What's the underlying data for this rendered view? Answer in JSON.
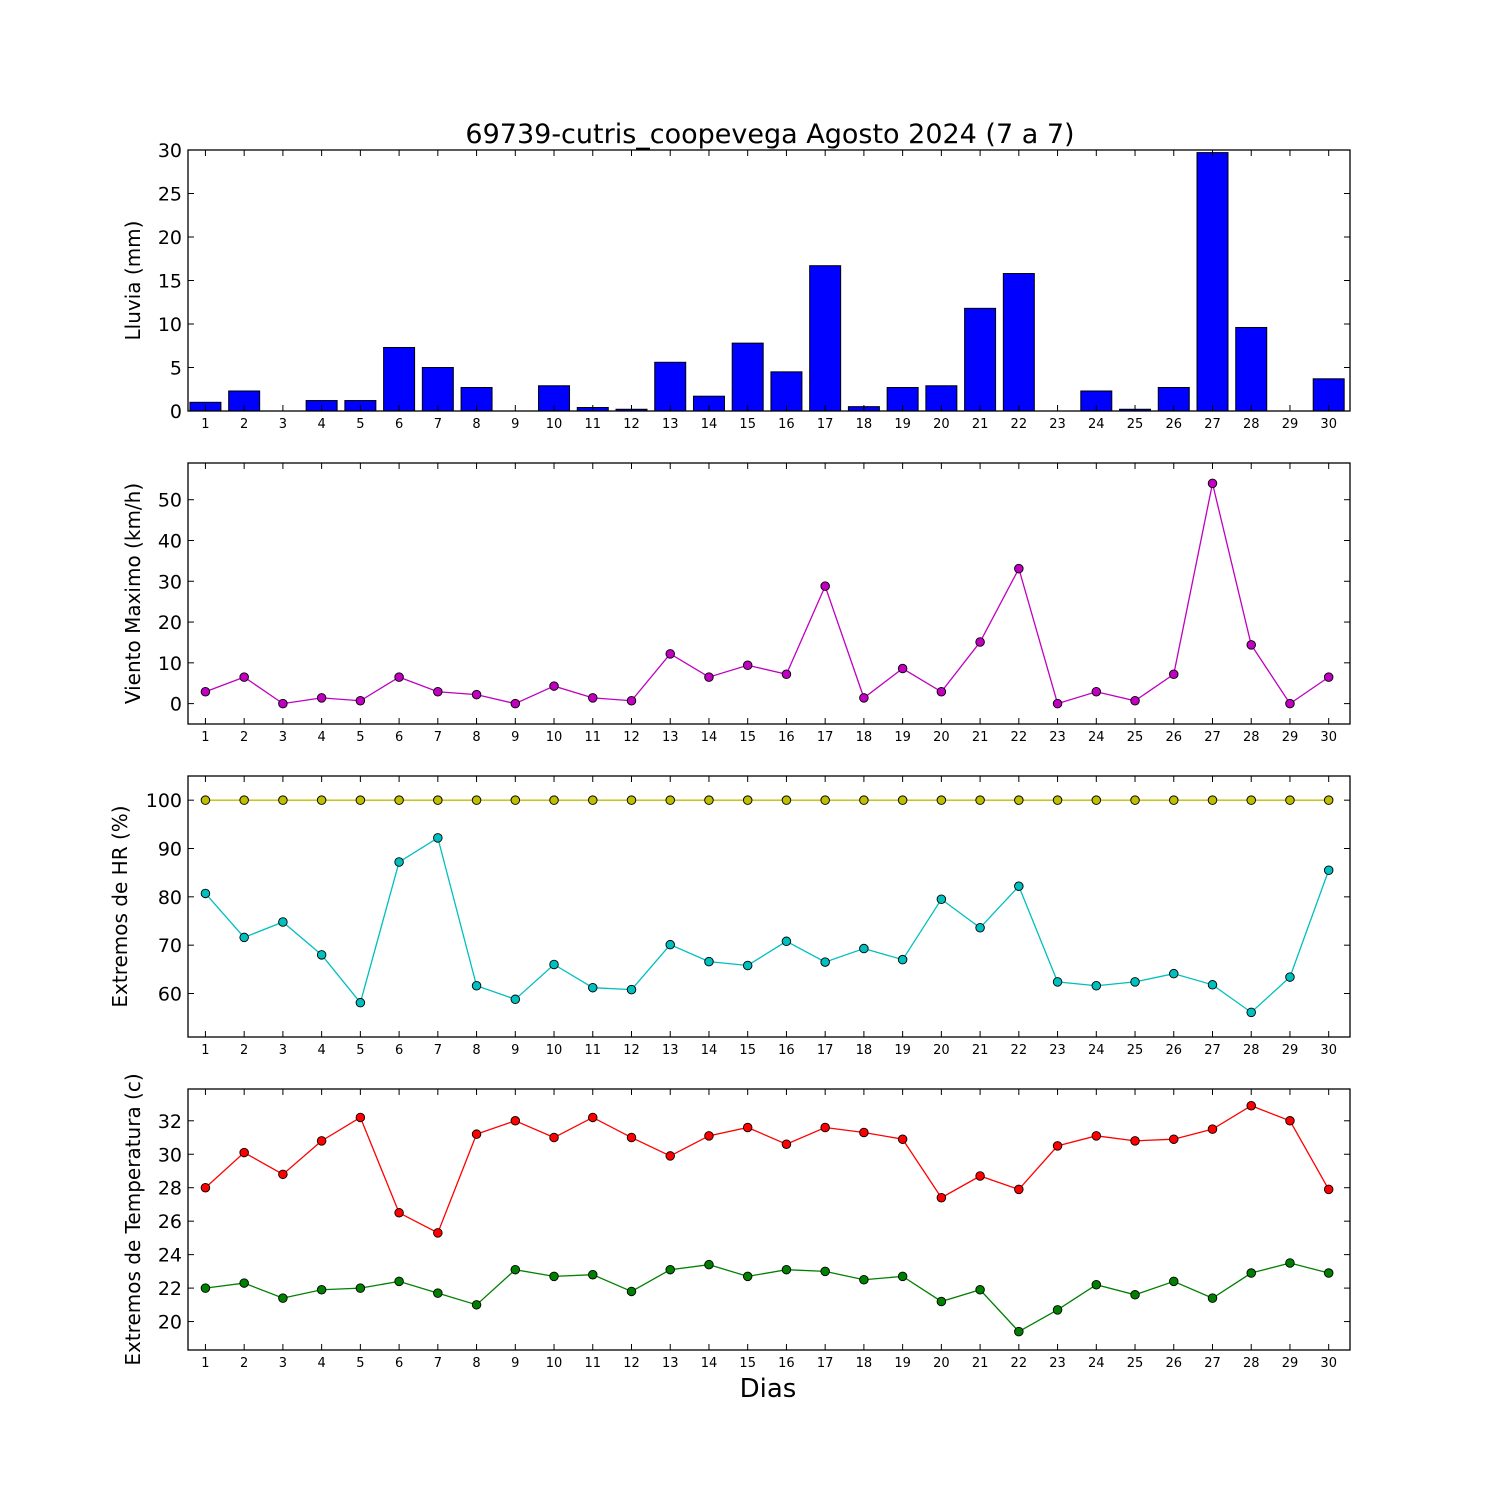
{
  "chart_data": [
    {
      "type": "bar",
      "title": "69739-cutris_coopevega Agosto 2024  (7 a 7)",
      "ylabel": "Lluvia (mm)",
      "xlabel": "",
      "categories": [
        "1",
        "2",
        "3",
        "4",
        "5",
        "6",
        "7",
        "8",
        "9",
        "10",
        "11",
        "12",
        "13",
        "14",
        "15",
        "16",
        "17",
        "18",
        "19",
        "20",
        "21",
        "22",
        "23",
        "24",
        "25",
        "26",
        "27",
        "28",
        "29",
        "30"
      ],
      "values": [
        1.0,
        2.3,
        0,
        1.2,
        1.2,
        7.3,
        5.0,
        2.7,
        0,
        2.9,
        0.4,
        0.2,
        5.6,
        1.7,
        7.8,
        4.5,
        16.7,
        0.5,
        2.7,
        2.9,
        11.8,
        15.8,
        0,
        2.3,
        0.2,
        2.7,
        29.7,
        9.6,
        0,
        3.7
      ],
      "yticks": [
        0,
        5,
        10,
        15,
        20,
        25,
        30
      ],
      "ylim": [
        0,
        30
      ],
      "color": "#0000ff"
    },
    {
      "type": "line",
      "title": "",
      "ylabel": "Viento Maximo (km/h)",
      "xlabel": "",
      "x": [
        1,
        2,
        3,
        4,
        5,
        6,
        7,
        8,
        9,
        10,
        11,
        12,
        13,
        14,
        15,
        16,
        17,
        18,
        19,
        20,
        21,
        22,
        23,
        24,
        25,
        26,
        27,
        28,
        29,
        30
      ],
      "series": [
        {
          "values": [
            2.9,
            6.5,
            0,
            1.4,
            0.7,
            6.5,
            2.9,
            2.2,
            0,
            4.3,
            1.4,
            0.7,
            12.2,
            6.5,
            9.4,
            7.2,
            28.8,
            1.4,
            8.6,
            2.9,
            15.1,
            33.1,
            0,
            2.9,
            0.7,
            7.2,
            54.0,
            14.4,
            0,
            6.5
          ],
          "color": "#bf00bf"
        }
      ],
      "yticks": [
        0,
        10,
        20,
        30,
        40,
        50
      ],
      "ylim": [
        -5,
        59
      ],
      "xlim": [
        0.55,
        30.55
      ]
    },
    {
      "type": "line",
      "title": "",
      "ylabel": "Extremos de HR (%)",
      "xlabel": "",
      "x": [
        1,
        2,
        3,
        4,
        5,
        6,
        7,
        8,
        9,
        10,
        11,
        12,
        13,
        14,
        15,
        16,
        17,
        18,
        19,
        20,
        21,
        22,
        23,
        24,
        25,
        26,
        27,
        28,
        29,
        30
      ],
      "series": [
        {
          "values": [
            100,
            100,
            100,
            100,
            100,
            100,
            100,
            100,
            100,
            100,
            100,
            100,
            100,
            100,
            100,
            100,
            100,
            100,
            100,
            100,
            100,
            100,
            100,
            100,
            100,
            100,
            100,
            100,
            100,
            100
          ],
          "color": "#bfbf00"
        },
        {
          "values": [
            80.7,
            71.6,
            74.8,
            68.0,
            58.1,
            87.2,
            92.2,
            61.6,
            58.8,
            66.0,
            61.2,
            60.8,
            70.1,
            66.6,
            65.8,
            70.8,
            66.5,
            69.3,
            67.0,
            79.5,
            73.6,
            82.2,
            62.4,
            61.6,
            62.4,
            64.1,
            61.8,
            56.1,
            63.4,
            85.5
          ],
          "color": "#00bfbf"
        }
      ],
      "yticks": [
        60,
        70,
        80,
        90,
        100
      ],
      "ylim": [
        51,
        105
      ],
      "xlim": [
        0.55,
        30.55
      ]
    },
    {
      "type": "line",
      "title": "",
      "ylabel": "Extremos de Temperatura (c)",
      "xlabel": "Dias",
      "x": [
        1,
        2,
        3,
        4,
        5,
        6,
        7,
        8,
        9,
        10,
        11,
        12,
        13,
        14,
        15,
        16,
        17,
        18,
        19,
        20,
        21,
        22,
        23,
        24,
        25,
        26,
        27,
        28,
        29,
        30
      ],
      "series": [
        {
          "values": [
            28.0,
            30.1,
            28.8,
            30.8,
            32.2,
            26.5,
            25.3,
            31.2,
            32.0,
            31.0,
            32.2,
            31.0,
            29.9,
            31.1,
            31.6,
            30.6,
            31.6,
            31.3,
            30.9,
            27.4,
            28.7,
            27.9,
            30.5,
            31.1,
            30.8,
            30.9,
            31.5,
            32.9,
            32.0,
            27.9
          ],
          "color": "#ff0000"
        },
        {
          "values": [
            22.0,
            22.3,
            21.4,
            21.9,
            22.0,
            22.4,
            21.7,
            21.0,
            23.1,
            22.7,
            22.8,
            21.8,
            23.1,
            23.4,
            22.7,
            23.1,
            23.0,
            22.5,
            22.7,
            21.2,
            21.9,
            19.4,
            20.7,
            22.2,
            21.6,
            22.4,
            21.4,
            22.9,
            23.5,
            22.9
          ],
          "color": "#008000"
        }
      ],
      "yticks": [
        20,
        22,
        24,
        26,
        28,
        30,
        32
      ],
      "ylim": [
        18.3,
        33.9
      ],
      "xlim": [
        0.55,
        30.55
      ]
    }
  ]
}
